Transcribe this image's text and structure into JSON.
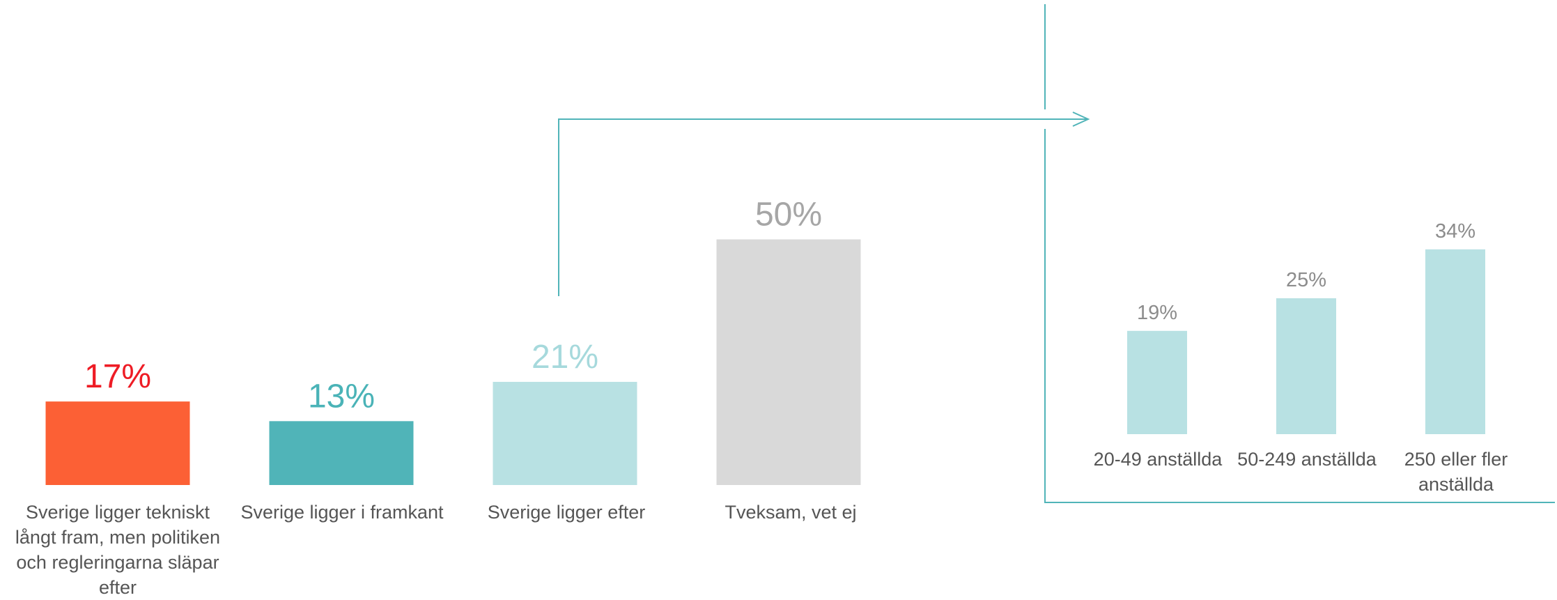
{
  "chart_data": [
    {
      "type": "bar",
      "categories": [
        "Sverige ligger tekniskt långt fram, men politiken och regleringarna släpar efter",
        "Sverige ligger i framkant",
        "Sverige ligger efter",
        "Tveksam, vet ej"
      ],
      "values": [
        17,
        13,
        21,
        50
      ],
      "value_labels": [
        "17%",
        "13%",
        "21%",
        "50%"
      ],
      "colors": [
        "#fc6035",
        "#50b4b8",
        "#b8e1e3",
        "#d9d9d9"
      ],
      "label_colors": [
        "#ee1c25",
        "#4ab3b7",
        "#a6d9dc",
        "#a6a6a6"
      ],
      "ylim": [
        0,
        50
      ]
    },
    {
      "type": "bar",
      "categories": [
        "20-49 anställda",
        "50-249 anställda",
        "250 eller fler anställda"
      ],
      "values": [
        19,
        25,
        34
      ],
      "value_labels": [
        "19%",
        "25%",
        "34%"
      ],
      "colors": [
        "#b8e1e3",
        "#b8e1e3",
        "#b8e1e3"
      ],
      "label_colors": [
        "#8c8c8c",
        "#8c8c8c",
        "#8c8c8c"
      ],
      "ylim": [
        0,
        34
      ]
    }
  ],
  "connector": {
    "color": "#50b4b8",
    "box_color": "#50b4b8"
  }
}
